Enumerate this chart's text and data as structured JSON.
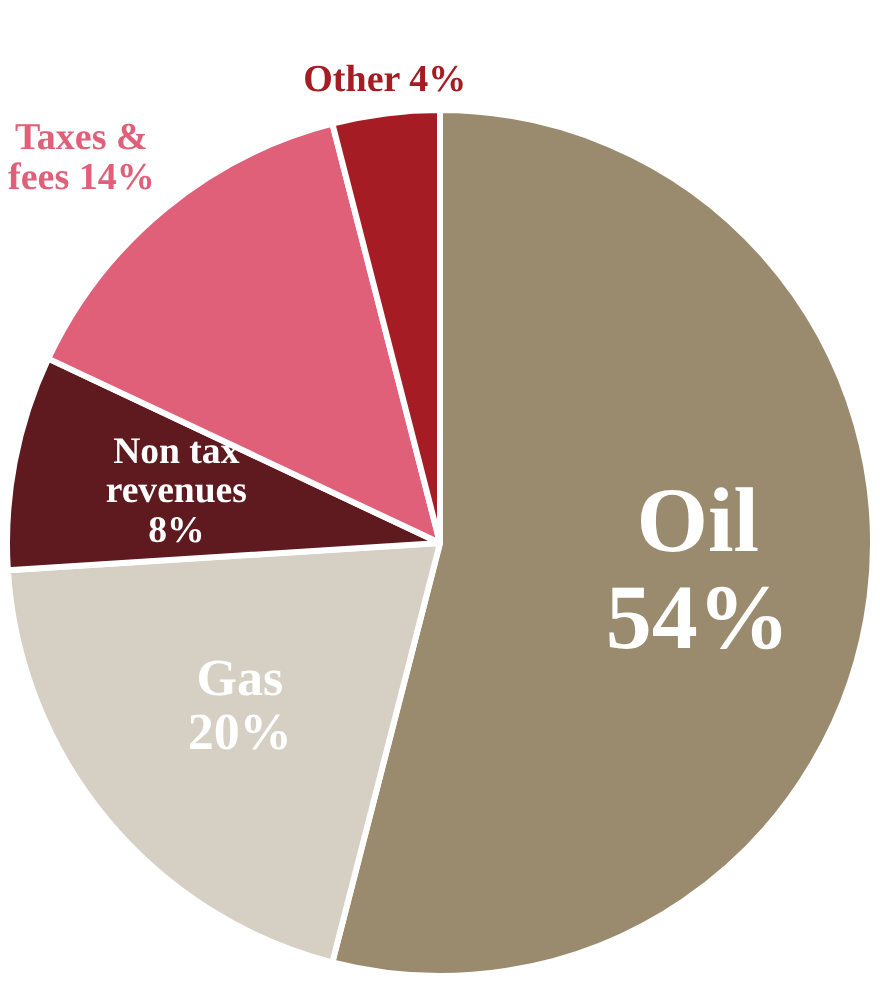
{
  "chart_data": {
    "type": "pie",
    "categories": [
      "Oil",
      "Gas",
      "Non tax revenues",
      "Taxes & fees",
      "Other"
    ],
    "values": [
      54,
      20,
      8,
      14,
      4
    ],
    "colors": [
      "#9b8b6e",
      "#d6d0c4",
      "#5e1a1f",
      "#e0607a",
      "#a51c24"
    ],
    "value_labels": [
      "54%",
      "20%",
      "8%",
      "14%",
      "4%"
    ],
    "legend": false
  }
}
